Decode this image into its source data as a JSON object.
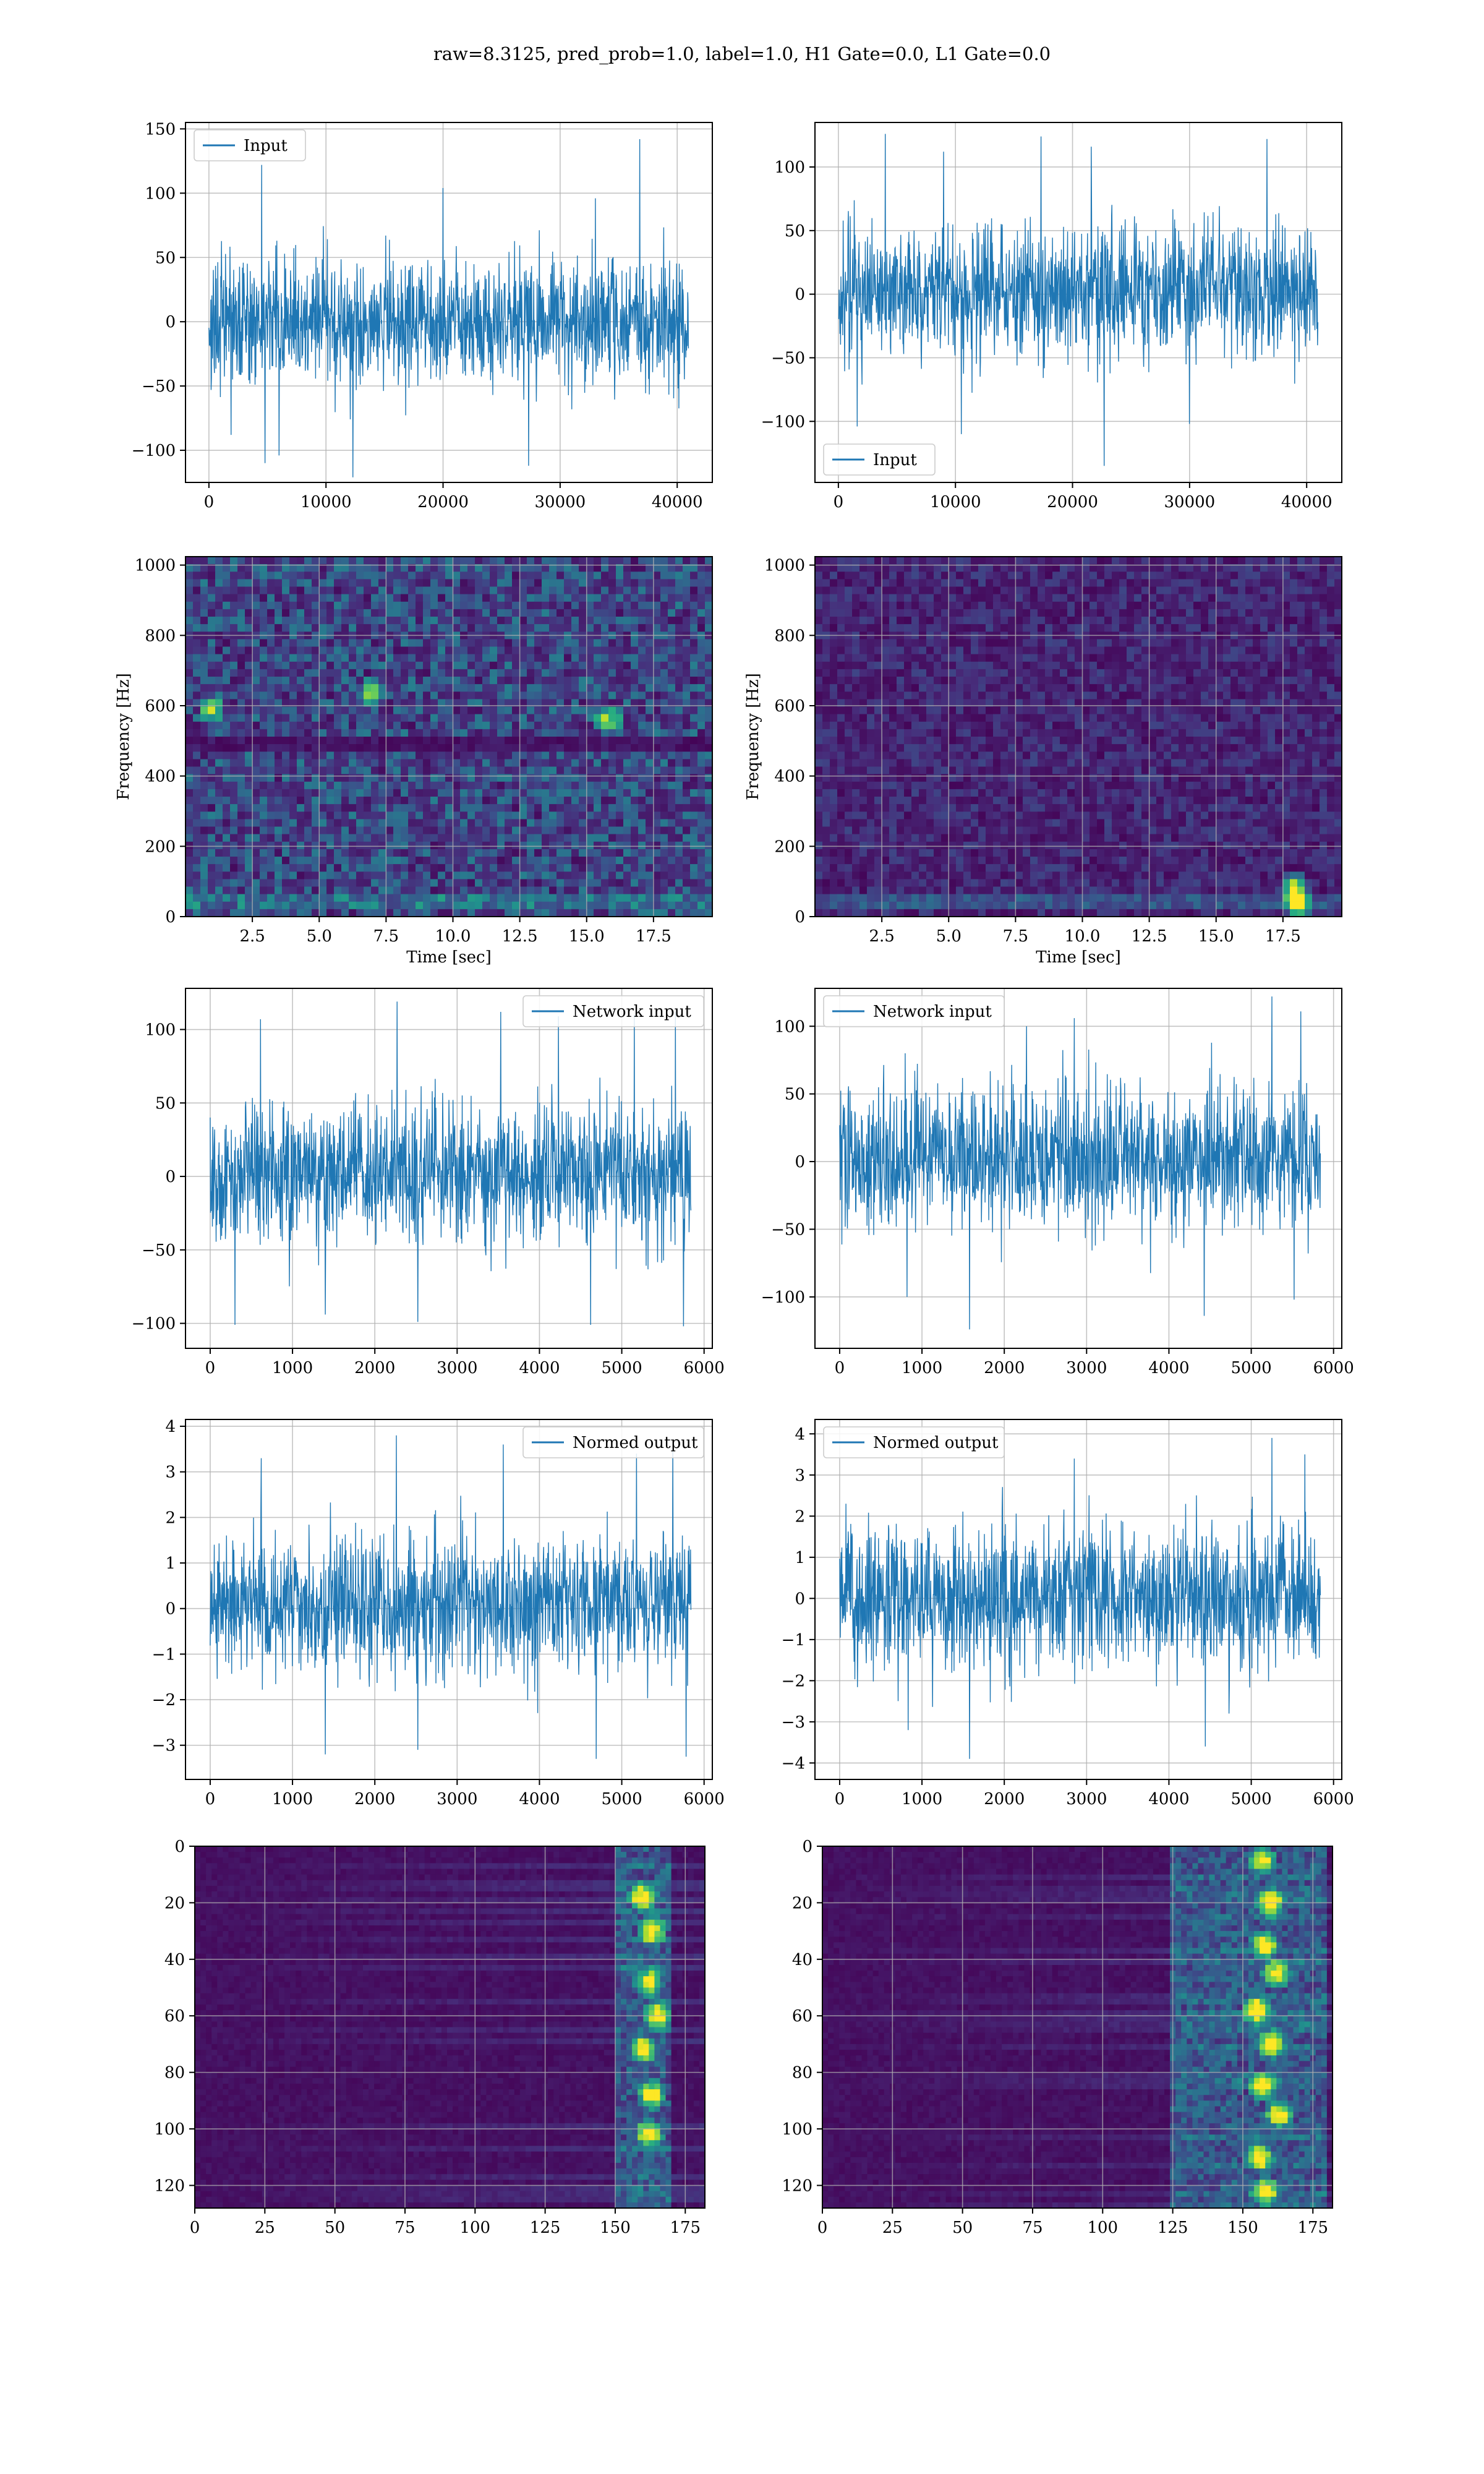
{
  "suptitle": "raw=8.3125, pred_prob=1.0, label=1.0, H1 Gate=0.0, L1 Gate=0.0",
  "colors": {
    "line": "#1f77b4",
    "grid": "#b0b0b0",
    "viridis_low": "#440154",
    "viridis_high": "#fde725"
  },
  "chart_data": [
    {
      "id": "input-h1",
      "type": "line",
      "xlim": [
        -2000,
        43000
      ],
      "ylim": [
        -125,
        155
      ],
      "xticks": [
        0,
        10000,
        20000,
        30000,
        40000
      ],
      "yticks": [
        -100,
        -50,
        0,
        50,
        100,
        150
      ],
      "xticklabels": [
        "0",
        "10000",
        "20000",
        "30000",
        "40000"
      ],
      "yticklabels": [
        "−100",
        "−50",
        "0",
        "50",
        "100",
        "150"
      ],
      "grid": true,
      "legend": "upper left",
      "series": [
        {
          "name": "Input",
          "n_samples": 40960,
          "x_range": [
            0,
            40960
          ],
          "envelope": {
            "typical_lo": -60,
            "typical_hi": 60,
            "min": -122,
            "max": 142
          },
          "spikes": [
            [
              4500,
              122
            ],
            [
              36800,
              142
            ],
            [
              33000,
              96
            ],
            [
              20000,
              104
            ],
            [
              12300,
              -121
            ],
            [
              4800,
              -110
            ],
            [
              27300,
              -112
            ],
            [
              6000,
              -104
            ],
            [
              1900,
              -88
            ]
          ]
        }
      ],
      "xlabel": "",
      "ylabel": ""
    },
    {
      "id": "input-l1",
      "type": "line",
      "xlim": [
        -2000,
        43000
      ],
      "ylim": [
        -148,
        135
      ],
      "xticks": [
        0,
        10000,
        20000,
        30000,
        40000
      ],
      "yticks": [
        -100,
        -50,
        0,
        50,
        100
      ],
      "xticklabels": [
        "0",
        "10000",
        "20000",
        "30000",
        "40000"
      ],
      "yticklabels": [
        "−100",
        "−50",
        "0",
        "50",
        "100"
      ],
      "grid": true,
      "legend": "lower left",
      "series": [
        {
          "name": "Input",
          "n_samples": 40960,
          "x_range": [
            0,
            40960
          ],
          "envelope": {
            "typical_lo": -60,
            "typical_hi": 65,
            "min": -135,
            "max": 125
          },
          "spikes": [
            [
              4000,
              126
            ],
            [
              17300,
              124
            ],
            [
              21600,
              116
            ],
            [
              36600,
              122
            ],
            [
              9000,
              112
            ],
            [
              22700,
              -135
            ],
            [
              10500,
              -110
            ],
            [
              1600,
              -104
            ],
            [
              30000,
              -102
            ]
          ]
        }
      ],
      "xlabel": "",
      "ylabel": ""
    },
    {
      "id": "spectrogram-h1",
      "type": "heatmap",
      "xlim": [
        0,
        19.7
      ],
      "ylim": [
        0,
        1024
      ],
      "xticks": [
        2.5,
        5.0,
        7.5,
        10.0,
        12.5,
        15.0,
        17.5
      ],
      "yticks": [
        0,
        200,
        400,
        600,
        800,
        1000
      ],
      "xticklabels": [
        "2.5",
        "5.0",
        "7.5",
        "10.0",
        "12.5",
        "15.0",
        "17.5"
      ],
      "yticklabels": [
        "0",
        "200",
        "400",
        "600",
        "800",
        "1000"
      ],
      "xlabel": "Time [sec]",
      "ylabel": "Frequency [Hz]",
      "colormap": "viridis",
      "mean_intensity": 0.24,
      "grid": true,
      "features": [
        {
          "band_hz": [
            470,
            520
          ],
          "note": "dark horizontal stripe"
        },
        {
          "band_hz": [
            20,
            60
          ],
          "note": "bright low-frequency band"
        }
      ],
      "hotspots": [
        [
          15.8,
          560
        ],
        [
          7.0,
          640
        ],
        [
          1.0,
          590
        ]
      ]
    },
    {
      "id": "spectrogram-l1",
      "type": "heatmap",
      "xlim": [
        0,
        19.7
      ],
      "ylim": [
        0,
        1024
      ],
      "xticks": [
        2.5,
        5.0,
        7.5,
        10.0,
        12.5,
        15.0,
        17.5
      ],
      "yticks": [
        0,
        200,
        400,
        600,
        800,
        1000
      ],
      "xticklabels": [
        "2.5",
        "5.0",
        "7.5",
        "10.0",
        "12.5",
        "15.0",
        "17.5"
      ],
      "yticklabels": [
        "0",
        "200",
        "400",
        "600",
        "800",
        "1000"
      ],
      "xlabel": "Time [sec]",
      "ylabel": "Frequency [Hz]",
      "colormap": "viridis",
      "mean_intensity": 0.12,
      "grid": true,
      "features": [
        {
          "band_hz": [
            20,
            60
          ],
          "note": "bright low-frequency band"
        }
      ],
      "hotspots": [
        [
          18.0,
          55
        ],
        [
          17.9,
          90
        ],
        [
          18.1,
          20
        ]
      ]
    },
    {
      "id": "network-input-h1",
      "type": "line",
      "xlim": [
        -300,
        6100
      ],
      "ylim": [
        -117,
        128
      ],
      "xticks": [
        0,
        1000,
        2000,
        3000,
        4000,
        5000,
        6000
      ],
      "yticks": [
        -100,
        -50,
        0,
        50,
        100
      ],
      "xticklabels": [
        "0",
        "1000",
        "2000",
        "3000",
        "4000",
        "5000",
        "6000"
      ],
      "yticklabels": [
        "−100",
        "−50",
        "0",
        "50",
        "100"
      ],
      "grid": true,
      "legend": "upper right",
      "series": [
        {
          "name": "Network input",
          "n_samples": 5840,
          "x_range": [
            0,
            5840
          ],
          "envelope": {
            "typical_lo": -55,
            "typical_hi": 60,
            "min": -104,
            "max": 119
          },
          "spikes": [
            [
              2270,
              119
            ],
            [
              3530,
              112
            ],
            [
              5150,
              110
            ],
            [
              610,
              107
            ],
            [
              4230,
              109
            ],
            [
              5650,
              112
            ],
            [
              300,
              -101
            ],
            [
              2520,
              -99
            ],
            [
              4620,
              -101
            ],
            [
              5750,
              -102
            ],
            [
              1400,
              -94
            ]
          ]
        }
      ],
      "xlabel": "",
      "ylabel": ""
    },
    {
      "id": "network-input-l1",
      "type": "line",
      "xlim": [
        -300,
        6100
      ],
      "ylim": [
        -138,
        128
      ],
      "xticks": [
        0,
        1000,
        2000,
        3000,
        4000,
        5000,
        6000
      ],
      "yticks": [
        -100,
        -50,
        0,
        50,
        100
      ],
      "xticklabels": [
        "0",
        "1000",
        "2000",
        "3000",
        "4000",
        "5000",
        "6000"
      ],
      "yticklabels": [
        "−100",
        "−50",
        "0",
        "50",
        "100"
      ],
      "grid": true,
      "legend": "upper left",
      "series": [
        {
          "name": "Network input",
          "n_samples": 5840,
          "x_range": [
            0,
            5840
          ],
          "envelope": {
            "typical_lo": -60,
            "typical_hi": 65,
            "min": -124,
            "max": 122
          },
          "spikes": [
            [
              5250,
              122
            ],
            [
              2850,
              106
            ],
            [
              5600,
              111
            ],
            [
              2270,
              100
            ],
            [
              1580,
              -124
            ],
            [
              4430,
              -114
            ],
            [
              820,
              -100
            ],
            [
              5520,
              -102
            ]
          ]
        }
      ],
      "xlabel": "",
      "ylabel": ""
    },
    {
      "id": "normed-output-h1",
      "type": "line",
      "xlim": [
        -300,
        6100
      ],
      "ylim": [
        -3.75,
        4.15
      ],
      "xticks": [
        0,
        1000,
        2000,
        3000,
        4000,
        5000,
        6000
      ],
      "yticks": [
        -3,
        -2,
        -1,
        0,
        1,
        2,
        3,
        4
      ],
      "xticklabels": [
        "0",
        "1000",
        "2000",
        "3000",
        "4000",
        "5000",
        "6000"
      ],
      "yticklabels": [
        "−3",
        "−2",
        "−1",
        "0",
        "1",
        "2",
        "3",
        "4"
      ],
      "grid": true,
      "legend": "upper right",
      "series": [
        {
          "name": "Normed output",
          "n_samples": 5840,
          "x_range": [
            0,
            5840
          ],
          "envelope": {
            "typical_lo": -1.8,
            "typical_hi": 1.9,
            "min": -3.3,
            "max": 3.8
          },
          "spikes": [
            [
              2260,
              3.8
            ],
            [
              3560,
              3.6
            ],
            [
              5180,
              3.4
            ],
            [
              620,
              3.3
            ],
            [
              5620,
              3.5
            ],
            [
              1400,
              -3.2
            ],
            [
              4690,
              -3.3
            ],
            [
              5780,
              -3.25
            ],
            [
              2520,
              -3.1
            ]
          ]
        }
      ],
      "xlabel": "",
      "ylabel": ""
    },
    {
      "id": "normed-output-l1",
      "type": "line",
      "xlim": [
        -300,
        6100
      ],
      "ylim": [
        -4.4,
        4.35
      ],
      "xticks": [
        0,
        1000,
        2000,
        3000,
        4000,
        5000,
        6000
      ],
      "yticks": [
        -4,
        -3,
        -2,
        -1,
        0,
        1,
        2,
        3,
        4
      ],
      "xticklabels": [
        "0",
        "1000",
        "2000",
        "3000",
        "4000",
        "5000",
        "6000"
      ],
      "yticklabels": [
        "−4",
        "−3",
        "−2",
        "−1",
        "0",
        "1",
        "2",
        "3",
        "4"
      ],
      "grid": true,
      "legend": "upper left",
      "series": [
        {
          "name": "Normed output",
          "n_samples": 5840,
          "x_range": [
            0,
            5840
          ],
          "envelope": {
            "typical_lo": -2.1,
            "typical_hi": 2.1,
            "min": -3.9,
            "max": 3.9
          },
          "spikes": [
            [
              5250,
              3.9
            ],
            [
              2850,
              3.4
            ],
            [
              5650,
              3.5
            ],
            [
              1580,
              -3.9
            ],
            [
              4440,
              -3.6
            ],
            [
              830,
              -3.2
            ]
          ]
        }
      ],
      "xlabel": "",
      "ylabel": ""
    },
    {
      "id": "feature-map-h1",
      "type": "heatmap",
      "xlim": [
        0,
        182
      ],
      "ylim": [
        128,
        0
      ],
      "xticks": [
        0,
        25,
        50,
        75,
        100,
        125,
        150,
        175
      ],
      "yticks": [
        0,
        20,
        40,
        60,
        80,
        100,
        120
      ],
      "xticklabels": [
        "0",
        "25",
        "50",
        "75",
        "100",
        "125",
        "150",
        "175"
      ],
      "yticklabels": [
        "0",
        "20",
        "40",
        "60",
        "80",
        "100",
        "120"
      ],
      "xlabel": "",
      "ylabel": "",
      "colormap": "viridis",
      "grid": true,
      "band_columns": [
        150,
        170
      ],
      "band_peaks": [
        [
          160,
          18
        ],
        [
          163,
          30
        ],
        [
          162,
          48
        ],
        [
          165,
          60
        ],
        [
          160,
          72
        ],
        [
          163,
          88
        ],
        [
          162,
          102
        ]
      ],
      "background": "dark with faint horizontal streaks"
    },
    {
      "id": "feature-map-l1",
      "type": "heatmap",
      "xlim": [
        0,
        182
      ],
      "ylim": [
        128,
        0
      ],
      "xticks": [
        0,
        25,
        50,
        75,
        100,
        125,
        150,
        175
      ],
      "yticks": [
        0,
        20,
        40,
        60,
        80,
        100,
        120
      ],
      "xticklabels": [
        "0",
        "25",
        "50",
        "75",
        "100",
        "125",
        "150",
        "175"
      ],
      "yticklabels": [
        "0",
        "20",
        "40",
        "60",
        "80",
        "100",
        "120"
      ],
      "xlabel": "",
      "ylabel": "",
      "colormap": "viridis",
      "grid": true,
      "band_columns": [
        125,
        180
      ],
      "band_peaks": [
        [
          157,
          5
        ],
        [
          160,
          20
        ],
        [
          158,
          35
        ],
        [
          162,
          45
        ],
        [
          155,
          58
        ],
        [
          160,
          70
        ],
        [
          157,
          85
        ],
        [
          163,
          95
        ],
        [
          156,
          110
        ],
        [
          158,
          122
        ]
      ],
      "background": "dark with horizontal streaks, wider active band"
    }
  ]
}
